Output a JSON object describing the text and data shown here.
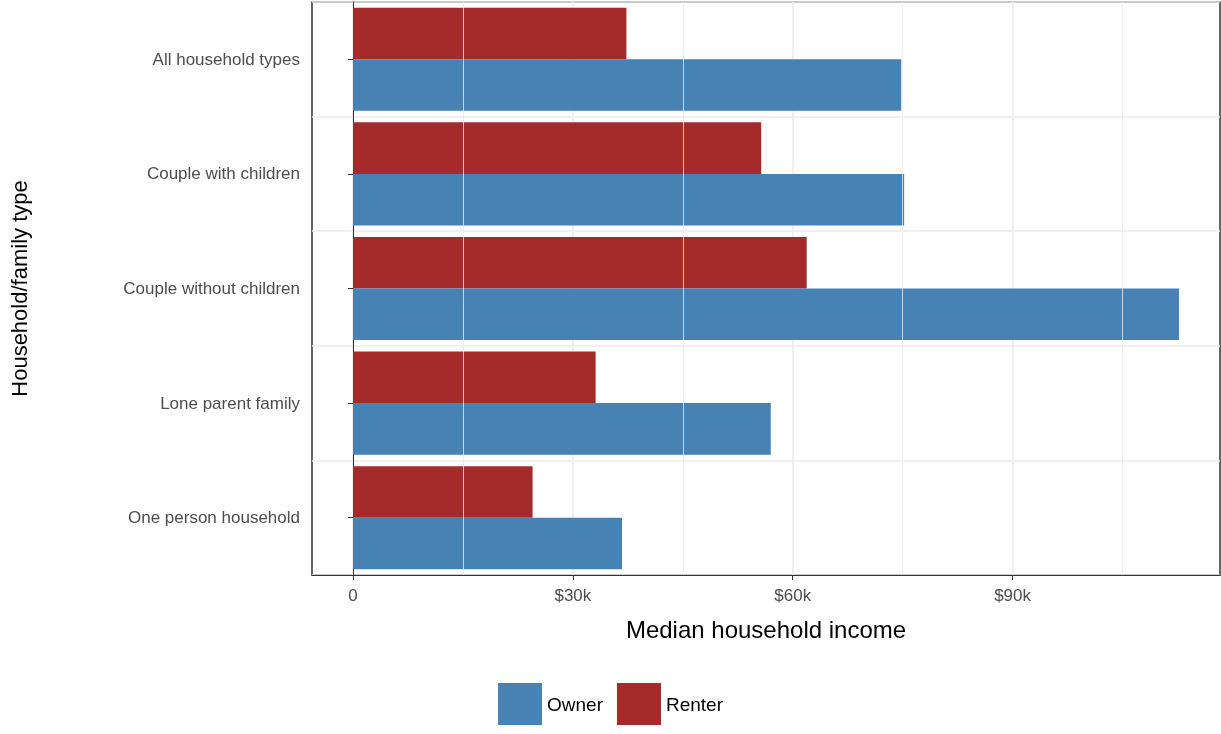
{
  "chart_data": {
    "type": "bar",
    "orientation": "horizontal",
    "xlabel": "Median household income",
    "ylabel": "Household/family type",
    "categories": [
      "All household types",
      "Couple with children",
      "Couple without children",
      "Lone parent family",
      "One person household"
    ],
    "series": [
      {
        "name": "Owner",
        "color": "#4682b4",
        "values": [
          74800,
          75200,
          112700,
          57000,
          36700
        ]
      },
      {
        "name": "Renter",
        "color": "#a52a2a",
        "values": [
          37300,
          55700,
          61900,
          33100,
          24500
        ]
      }
    ],
    "xlim": [
      -5600,
      118300
    ],
    "xticks": [
      0,
      {
        "value": 30000,
        "label": "$30k"
      },
      {
        "value": 60000,
        "label": "$60k"
      },
      {
        "value": 90000,
        "label": "$90k"
      }
    ],
    "grid": true,
    "legend": "bottom"
  }
}
